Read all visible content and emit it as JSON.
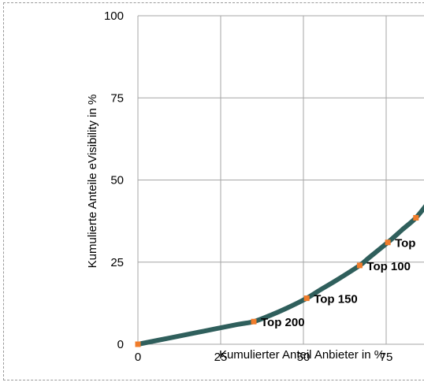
{
  "chart_data": {
    "type": "line",
    "title": "",
    "xlabel": "Kumulierter Anteil Anbieter in %",
    "ylabel": "Kumulierte Anteile eVisibility in %",
    "xlim": [
      0,
      100
    ],
    "ylim": [
      0,
      100
    ],
    "x_ticks": [
      "0",
      "25",
      "50",
      "75"
    ],
    "y_ticks": [
      "0",
      "25",
      "50",
      "75",
      "100"
    ],
    "grid": true,
    "line_color": "#2f5f5c",
    "marker_color": "#f07c2b",
    "curve": {
      "x": [
        0,
        10,
        20,
        30,
        35,
        40,
        45,
        51,
        55,
        60,
        67,
        70,
        75.5,
        80,
        84,
        88
      ],
      "y": [
        0,
        2,
        4,
        6,
        6.9,
        8.8,
        11,
        14,
        16.5,
        19.5,
        24,
        26.5,
        31,
        35,
        38.5,
        43.5
      ]
    },
    "points": [
      {
        "x": 0,
        "y": 0,
        "label": ""
      },
      {
        "x": 35,
        "y": 6.9,
        "label": "Top 200"
      },
      {
        "x": 51,
        "y": 14,
        "label": "Top 150"
      },
      {
        "x": 67,
        "y": 24,
        "label": "Top 100"
      },
      {
        "x": 75.5,
        "y": 31,
        "label": "Top"
      },
      {
        "x": 84,
        "y": 38.5,
        "label": ""
      }
    ]
  }
}
